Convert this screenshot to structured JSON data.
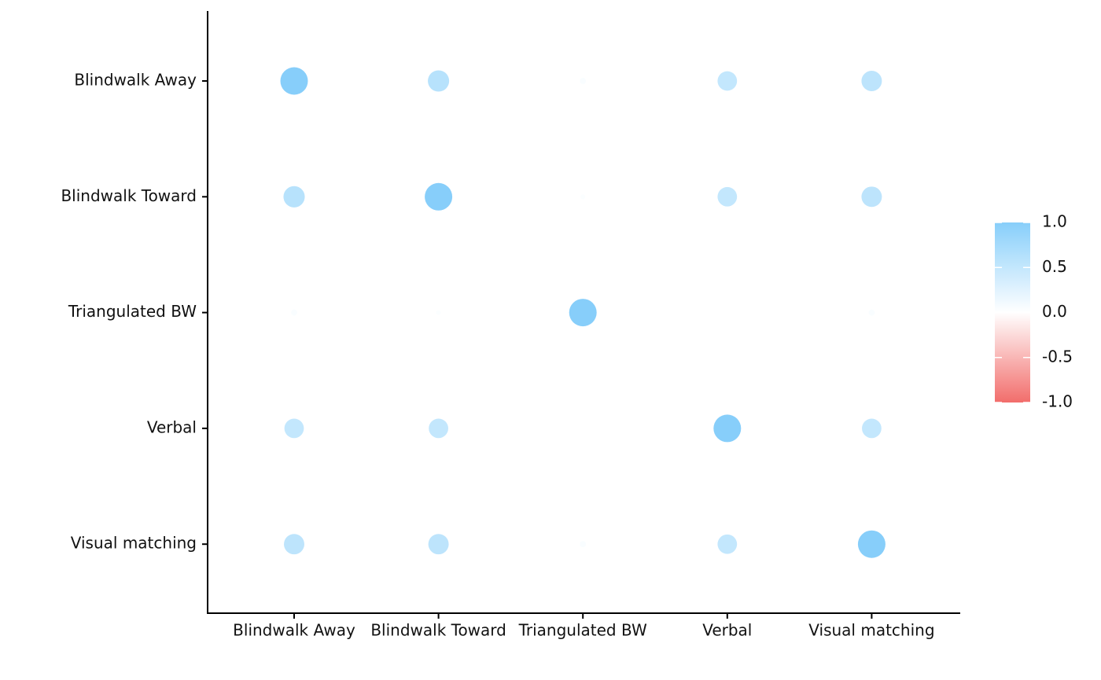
{
  "chart_data": {
    "type": "correlation_dots",
    "x_categories": [
      "Blindwalk Away",
      "Blindwalk Toward",
      "Triangulated BW",
      "Verbal",
      "Visual matching"
    ],
    "y_categories": [
      "Blindwalk Away",
      "Blindwalk Toward",
      "Triangulated BW",
      "Verbal",
      "Visual matching"
    ],
    "values": [
      [
        1,
        0.6,
        0.05,
        0.5,
        0.55
      ],
      [
        0.6,
        1,
        0.03,
        0.5,
        0.55
      ],
      [
        0.05,
        0.03,
        1,
        0,
        0.05
      ],
      [
        0.5,
        0.5,
        0,
        1,
        0.5
      ],
      [
        0.55,
        0.55,
        0.05,
        0.5,
        1
      ]
    ],
    "colors": {
      "low": "#f26d6b",
      "mid": "#ffffff",
      "high": "#87cefa"
    },
    "legend_lim": [
      -1,
      1
    ],
    "legend_ticks": [
      {
        "value": 1,
        "label": "1.0"
      },
      {
        "value": 0.5,
        "label": "0.5"
      },
      {
        "value": 0,
        "label": "0.0"
      },
      {
        "value": -0.5,
        "label": "-0.5"
      },
      {
        "value": -1,
        "label": "-1.0"
      }
    ]
  }
}
